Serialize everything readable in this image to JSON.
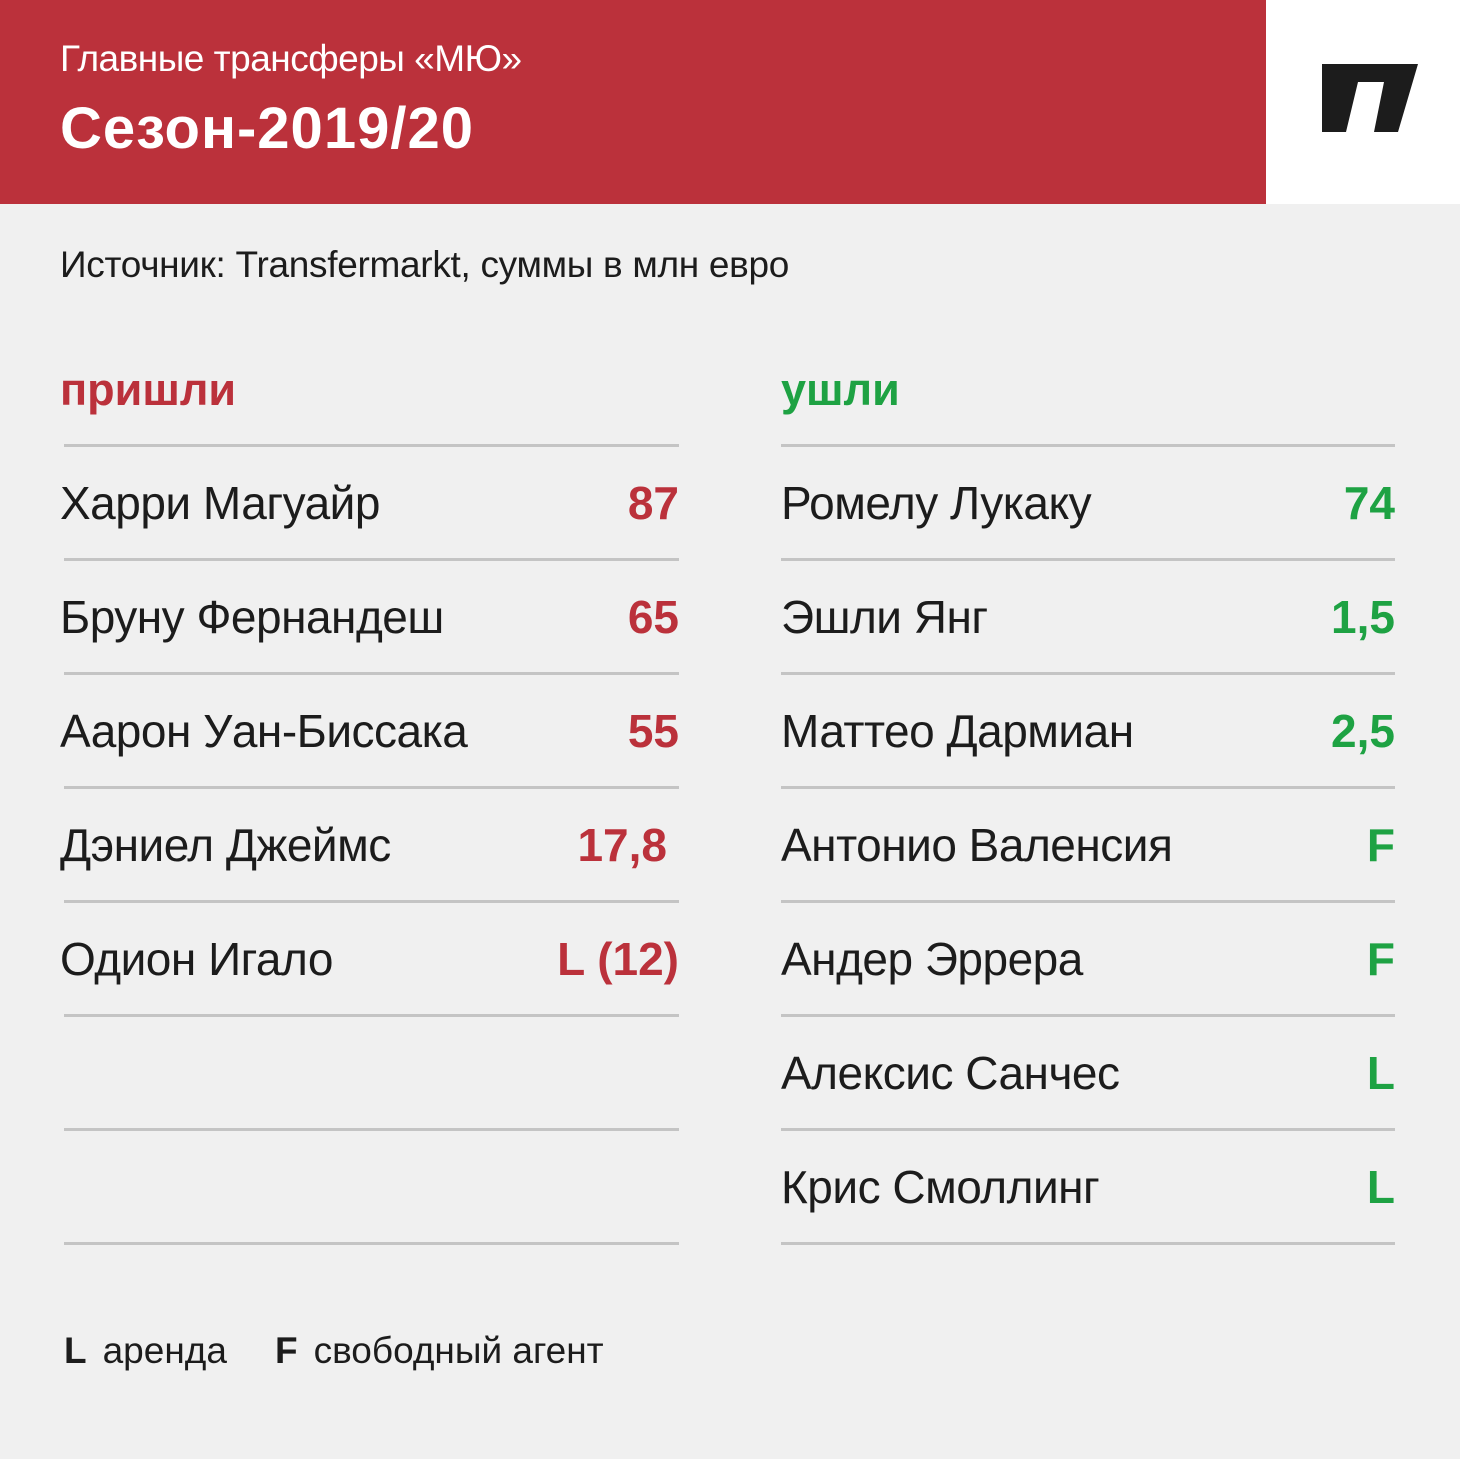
{
  "header": {
    "subtitle": "Главные трансферы «МЮ»",
    "title": "Сезон-2019/20",
    "accent_color": "#bb313b",
    "logo_icon": "publisher-logo-icon"
  },
  "source_note": "Источник: Transfermarkt, суммы в млн евро",
  "arrivals": {
    "heading": "пришли",
    "color": "#bb313b",
    "rows": [
      {
        "name": "Харри Магуайр",
        "value": "87"
      },
      {
        "name": "Бруну Фернандеш",
        "value": "65"
      },
      {
        "name": "Аарон Уан-Биссака",
        "value": "55"
      },
      {
        "name": "Дэниел Джеймс",
        "value": "17,8"
      },
      {
        "name": "Одион Игало",
        "value": "L (12)"
      },
      {
        "name": "",
        "value": ""
      },
      {
        "name": "",
        "value": ""
      }
    ]
  },
  "departures": {
    "heading": "ушли",
    "color": "#1ea243",
    "rows": [
      {
        "name": "Ромелу Лукаку",
        "value": "74"
      },
      {
        "name": "Эшли Янг",
        "value": "1,5"
      },
      {
        "name": "Маттео Дармиан",
        "value": "2,5"
      },
      {
        "name": "Антонио Валенсия",
        "value": "F"
      },
      {
        "name": "Андер Эррера",
        "value": "F"
      },
      {
        "name": "Алексис Санчес",
        "value": "L"
      },
      {
        "name": "Крис Смоллинг",
        "value": "L"
      }
    ]
  },
  "legend": [
    {
      "key": "L",
      "description": "аренда"
    },
    {
      "key": "F",
      "description": "свободный агент"
    }
  ]
}
